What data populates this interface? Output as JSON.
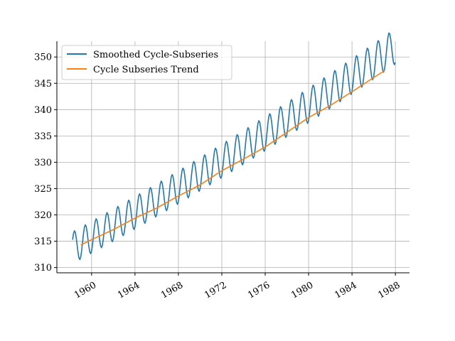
{
  "chart_data": {
    "type": "line",
    "title": "",
    "xlabel": "",
    "ylabel": "",
    "xlim": [
      1956.8,
      1989.3
    ],
    "ylim": [
      309,
      353
    ],
    "grid": true,
    "legend_position": "top-left",
    "xticks": [
      1960,
      1964,
      1968,
      1972,
      1976,
      1980,
      1984,
      1988
    ],
    "yticks": [
      310,
      315,
      320,
      325,
      330,
      335,
      340,
      345,
      350
    ],
    "series": [
      {
        "name": "Smoothed Cycle-Subseries",
        "color": "#1f77b4",
        "x_start": 1958.25,
        "x_end": 1988.0,
        "step": 0.0833,
        "trend": {
          "at_1958": 313.5,
          "slope_per_year": 1.12,
          "curvature": 0.0055
        },
        "seasonal_amplitude": {
          "at_1958": 3.0,
          "slope_per_year": 0.013
        },
        "seasonal_peak_month": 5
      },
      {
        "name": "Cycle Subseries Trend",
        "color": "#ff7f0e",
        "x": [
          1959.0,
          1960.0,
          1962.0,
          1964.0,
          1966.0,
          1968.0,
          1970.0,
          1972.0,
          1974.0,
          1976.0,
          1978.0,
          1980.0,
          1982.0,
          1984.0,
          1986.0,
          1987.0
        ],
        "y": [
          314.3,
          315.3,
          317.2,
          319.4,
          321.3,
          323.6,
          325.7,
          328.4,
          330.6,
          332.9,
          335.7,
          338.5,
          340.8,
          343.4,
          346.1,
          347.4
        ]
      }
    ]
  }
}
